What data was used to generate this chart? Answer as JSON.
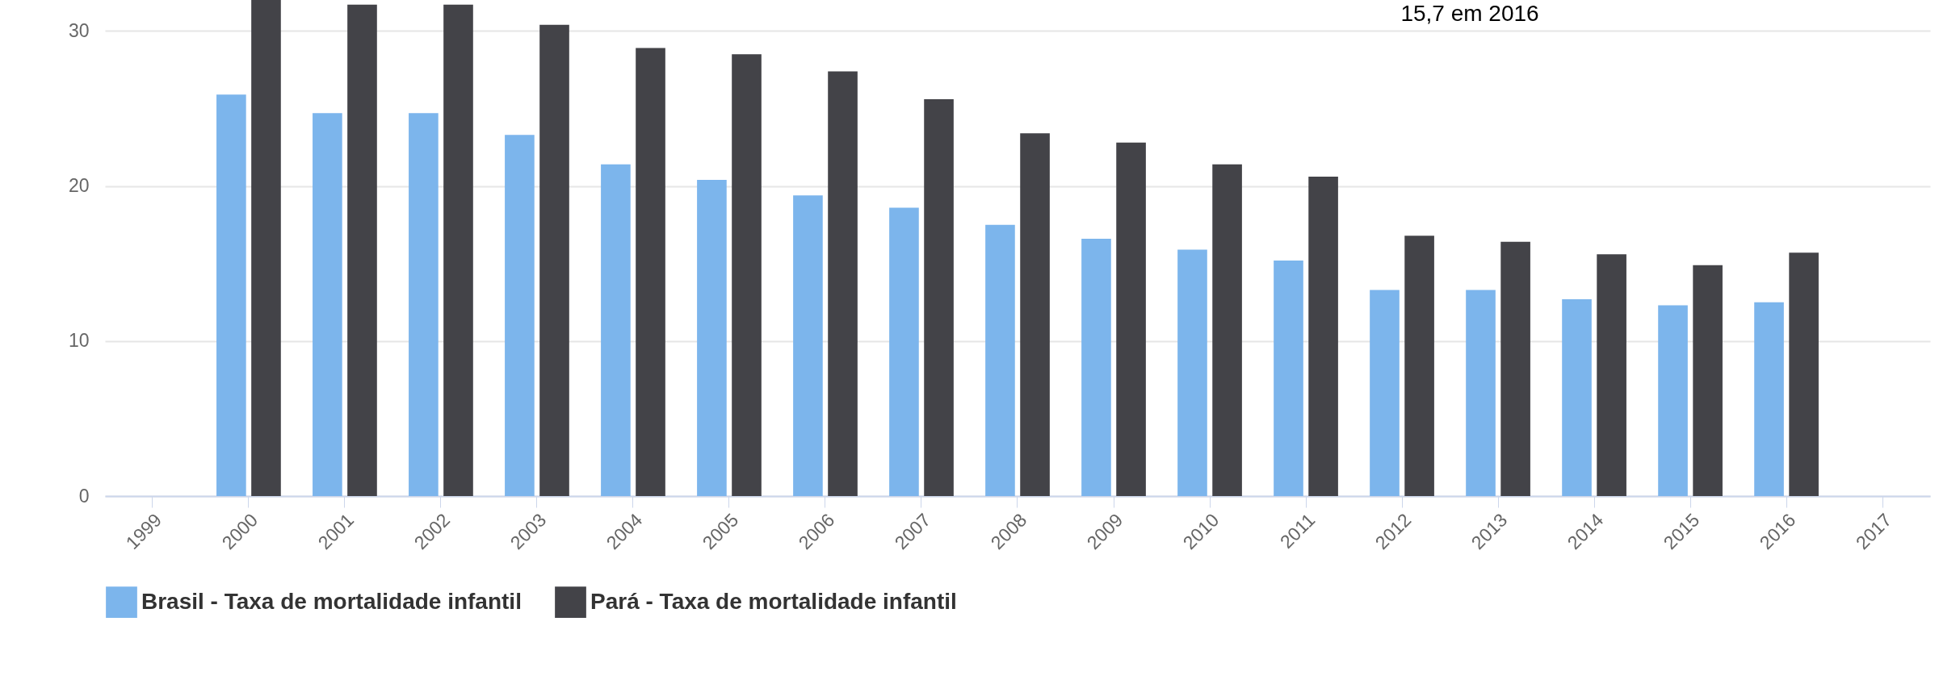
{
  "chart_data": {
    "type": "bar",
    "categories": [
      "1999",
      "2000",
      "2001",
      "2002",
      "2003",
      "2004",
      "2005",
      "2006",
      "2007",
      "2008",
      "2009",
      "2010",
      "2011",
      "2012",
      "2013",
      "2014",
      "2015",
      "2016",
      "2017"
    ],
    "series": [
      {
        "name": "Brasil - Taxa de mortalidade infantil",
        "color": "#7cb5ec",
        "values": [
          null,
          25.9,
          24.7,
          24.7,
          23.3,
          21.4,
          20.4,
          19.4,
          18.6,
          17.5,
          16.6,
          15.9,
          15.2,
          13.3,
          13.3,
          12.7,
          12.3,
          12.5,
          null
        ]
      },
      {
        "name": "Pará - Taxa de mortalidade infantil",
        "color": "#434348",
        "values": [
          null,
          32,
          31.7,
          31.7,
          30.4,
          28.9,
          28.5,
          27.4,
          25.6,
          23.4,
          22.8,
          21.4,
          20.6,
          16.8,
          16.4,
          15.6,
          14.9,
          15.7,
          null
        ]
      }
    ],
    "ylim": [
      0,
      32
    ],
    "yticks": [
      0,
      10,
      20,
      30
    ],
    "grid": "y",
    "legend": "bottom",
    "annotations": [
      "15,7 em 2016"
    ]
  }
}
